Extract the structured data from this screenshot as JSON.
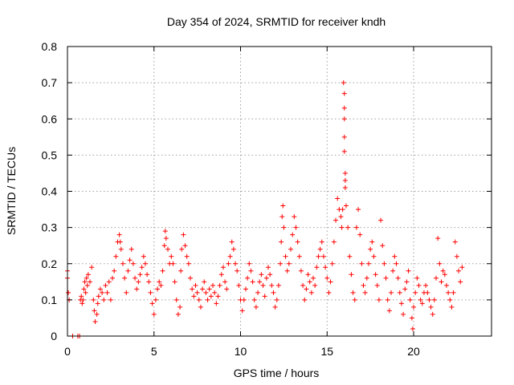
{
  "chart_data": {
    "type": "scatter",
    "title": "Day 354 of 2024, SRMTID for receiver kndh",
    "xlabel": "GPS time / hours",
    "ylabel": "SRMTID / TECUs",
    "xlim": [
      0,
      24.5
    ],
    "ylim": [
      0,
      0.8
    ],
    "xticks": [
      0,
      5,
      10,
      15,
      20
    ],
    "yticks": [
      0,
      0.1,
      0.2,
      0.3,
      0.4,
      0.5,
      0.6,
      0.7,
      0.8
    ],
    "xtick_labels": [
      "0",
      "5",
      "10",
      "15",
      "20"
    ],
    "ytick_labels": [
      "0",
      "0.1",
      "0.2",
      "0.3",
      "0.4",
      "0.5",
      "0.6",
      "0.7",
      "0.8"
    ],
    "grid": true,
    "marker": "+",
    "color": "#ff0000",
    "series": [
      {
        "name": "SRMTID",
        "x": [
          0.0,
          0.0,
          0.05,
          0.1,
          0.3,
          0.6,
          0.7,
          0.75,
          0.8,
          0.85,
          0.9,
          0.95,
          1.0,
          1.05,
          1.1,
          1.15,
          1.2,
          1.3,
          1.4,
          1.5,
          1.55,
          1.6,
          1.7,
          1.75,
          1.8,
          1.9,
          2.0,
          2.1,
          2.2,
          2.3,
          2.4,
          2.5,
          2.6,
          2.7,
          2.8,
          2.9,
          3.0,
          3.05,
          3.1,
          3.2,
          3.3,
          3.4,
          3.5,
          3.6,
          3.7,
          3.8,
          3.9,
          4.0,
          4.1,
          4.2,
          4.3,
          4.4,
          4.5,
          4.6,
          4.7,
          4.8,
          4.9,
          5.0,
          5.1,
          5.2,
          5.3,
          5.4,
          5.5,
          5.6,
          5.65,
          5.7,
          5.8,
          5.9,
          6.0,
          6.1,
          6.2,
          6.3,
          6.4,
          6.5,
          6.55,
          6.6,
          6.7,
          6.8,
          6.9,
          7.0,
          7.1,
          7.2,
          7.3,
          7.4,
          7.5,
          7.6,
          7.7,
          7.8,
          7.9,
          8.0,
          8.1,
          8.2,
          8.3,
          8.4,
          8.5,
          8.6,
          8.7,
          8.8,
          8.9,
          9.0,
          9.1,
          9.2,
          9.3,
          9.4,
          9.5,
          9.6,
          9.7,
          9.8,
          9.9,
          10.0,
          10.1,
          10.2,
          10.3,
          10.4,
          10.5,
          10.6,
          10.7,
          10.8,
          10.9,
          11.0,
          11.1,
          11.2,
          11.3,
          11.4,
          11.5,
          11.6,
          11.7,
          11.8,
          11.9,
          12.0,
          12.1,
          12.2,
          12.3,
          12.35,
          12.4,
          12.45,
          12.5,
          12.6,
          12.7,
          12.8,
          12.9,
          13.0,
          13.1,
          13.2,
          13.3,
          13.4,
          13.5,
          13.6,
          13.7,
          13.8,
          13.9,
          14.0,
          14.1,
          14.2,
          14.3,
          14.4,
          14.5,
          14.6,
          14.7,
          14.8,
          14.9,
          15.0,
          15.1,
          15.2,
          15.3,
          15.4,
          15.5,
          15.6,
          15.7,
          15.8,
          15.85,
          15.9,
          15.95,
          16.0,
          16.0,
          16.0,
          16.0,
          16.0,
          16.05,
          16.05,
          16.05,
          16.1,
          16.2,
          16.3,
          16.4,
          16.5,
          16.6,
          16.7,
          16.8,
          16.9,
          17.0,
          17.1,
          17.2,
          17.3,
          17.4,
          17.5,
          17.6,
          17.7,
          17.8,
          17.9,
          18.0,
          18.1,
          18.2,
          18.3,
          18.4,
          18.5,
          18.6,
          18.7,
          18.8,
          18.9,
          19.0,
          19.1,
          19.2,
          19.3,
          19.4,
          19.5,
          19.6,
          19.7,
          19.8,
          19.9,
          19.95,
          20.0,
          20.1,
          20.2,
          20.3,
          20.4,
          20.5,
          20.6,
          20.7,
          20.8,
          20.9,
          21.0,
          21.1,
          21.2,
          21.3,
          21.4,
          21.5,
          21.6,
          21.7,
          21.8,
          21.9,
          22.0,
          22.1,
          22.2,
          22.3,
          22.4,
          22.5,
          22.6,
          22.7,
          22.8
        ],
        "y": [
          0.18,
          0.16,
          0.12,
          0.1,
          0.0,
          0.0,
          0.0,
          0.1,
          0.11,
          0.09,
          0.1,
          0.13,
          0.15,
          0.12,
          0.16,
          0.14,
          0.17,
          0.15,
          0.19,
          0.1,
          0.07,
          0.04,
          0.06,
          0.09,
          0.11,
          0.13,
          0.12,
          0.1,
          0.14,
          0.12,
          0.15,
          0.1,
          0.16,
          0.18,
          0.22,
          0.26,
          0.28,
          0.26,
          0.24,
          0.2,
          0.16,
          0.12,
          0.18,
          0.21,
          0.24,
          0.2,
          0.16,
          0.13,
          0.15,
          0.17,
          0.19,
          0.22,
          0.2,
          0.17,
          0.15,
          0.12,
          0.09,
          0.06,
          0.1,
          0.13,
          0.15,
          0.14,
          0.18,
          0.25,
          0.29,
          0.27,
          0.24,
          0.2,
          0.22,
          0.2,
          0.15,
          0.1,
          0.06,
          0.08,
          0.18,
          0.24,
          0.28,
          0.25,
          0.22,
          0.2,
          0.16,
          0.13,
          0.11,
          0.14,
          0.12,
          0.1,
          0.08,
          0.13,
          0.15,
          0.12,
          0.1,
          0.13,
          0.11,
          0.14,
          0.12,
          0.09,
          0.11,
          0.14,
          0.17,
          0.19,
          0.15,
          0.13,
          0.2,
          0.22,
          0.26,
          0.24,
          0.2,
          0.18,
          0.14,
          0.1,
          0.07,
          0.1,
          0.13,
          0.16,
          0.2,
          0.18,
          0.15,
          0.1,
          0.08,
          0.12,
          0.15,
          0.17,
          0.14,
          0.11,
          0.16,
          0.19,
          0.17,
          0.14,
          0.12,
          0.08,
          0.1,
          0.14,
          0.2,
          0.26,
          0.33,
          0.36,
          0.3,
          0.22,
          0.18,
          0.2,
          0.24,
          0.28,
          0.33,
          0.3,
          0.26,
          0.22,
          0.18,
          0.14,
          0.1,
          0.13,
          0.17,
          0.15,
          0.12,
          0.16,
          0.14,
          0.19,
          0.22,
          0.24,
          0.26,
          0.22,
          0.19,
          0.16,
          0.12,
          0.15,
          0.2,
          0.26,
          0.32,
          0.38,
          0.35,
          0.33,
          0.3,
          0.35,
          0.7,
          0.67,
          0.63,
          0.6,
          0.55,
          0.51,
          0.45,
          0.43,
          0.41,
          0.36,
          0.3,
          0.22,
          0.17,
          0.12,
          0.1,
          0.3,
          0.35,
          0.28,
          0.2,
          0.14,
          0.12,
          0.16,
          0.2,
          0.24,
          0.26,
          0.22,
          0.17,
          0.14,
          0.1,
          0.32,
          0.25,
          0.2,
          0.16,
          0.1,
          0.07,
          0.12,
          0.18,
          0.22,
          0.2,
          0.16,
          0.12,
          0.09,
          0.06,
          0.13,
          0.15,
          0.18,
          0.1,
          0.05,
          0.02,
          0.08,
          0.12,
          0.16,
          0.14,
          0.1,
          0.09,
          0.12,
          0.14,
          0.12,
          0.1,
          0.08,
          0.06,
          0.1,
          0.16,
          0.27,
          0.2,
          0.15,
          0.18,
          0.17,
          0.14,
          0.12,
          0.1,
          0.08,
          0.12,
          0.26,
          0.22,
          0.18,
          0.15,
          0.19
        ]
      }
    ]
  }
}
